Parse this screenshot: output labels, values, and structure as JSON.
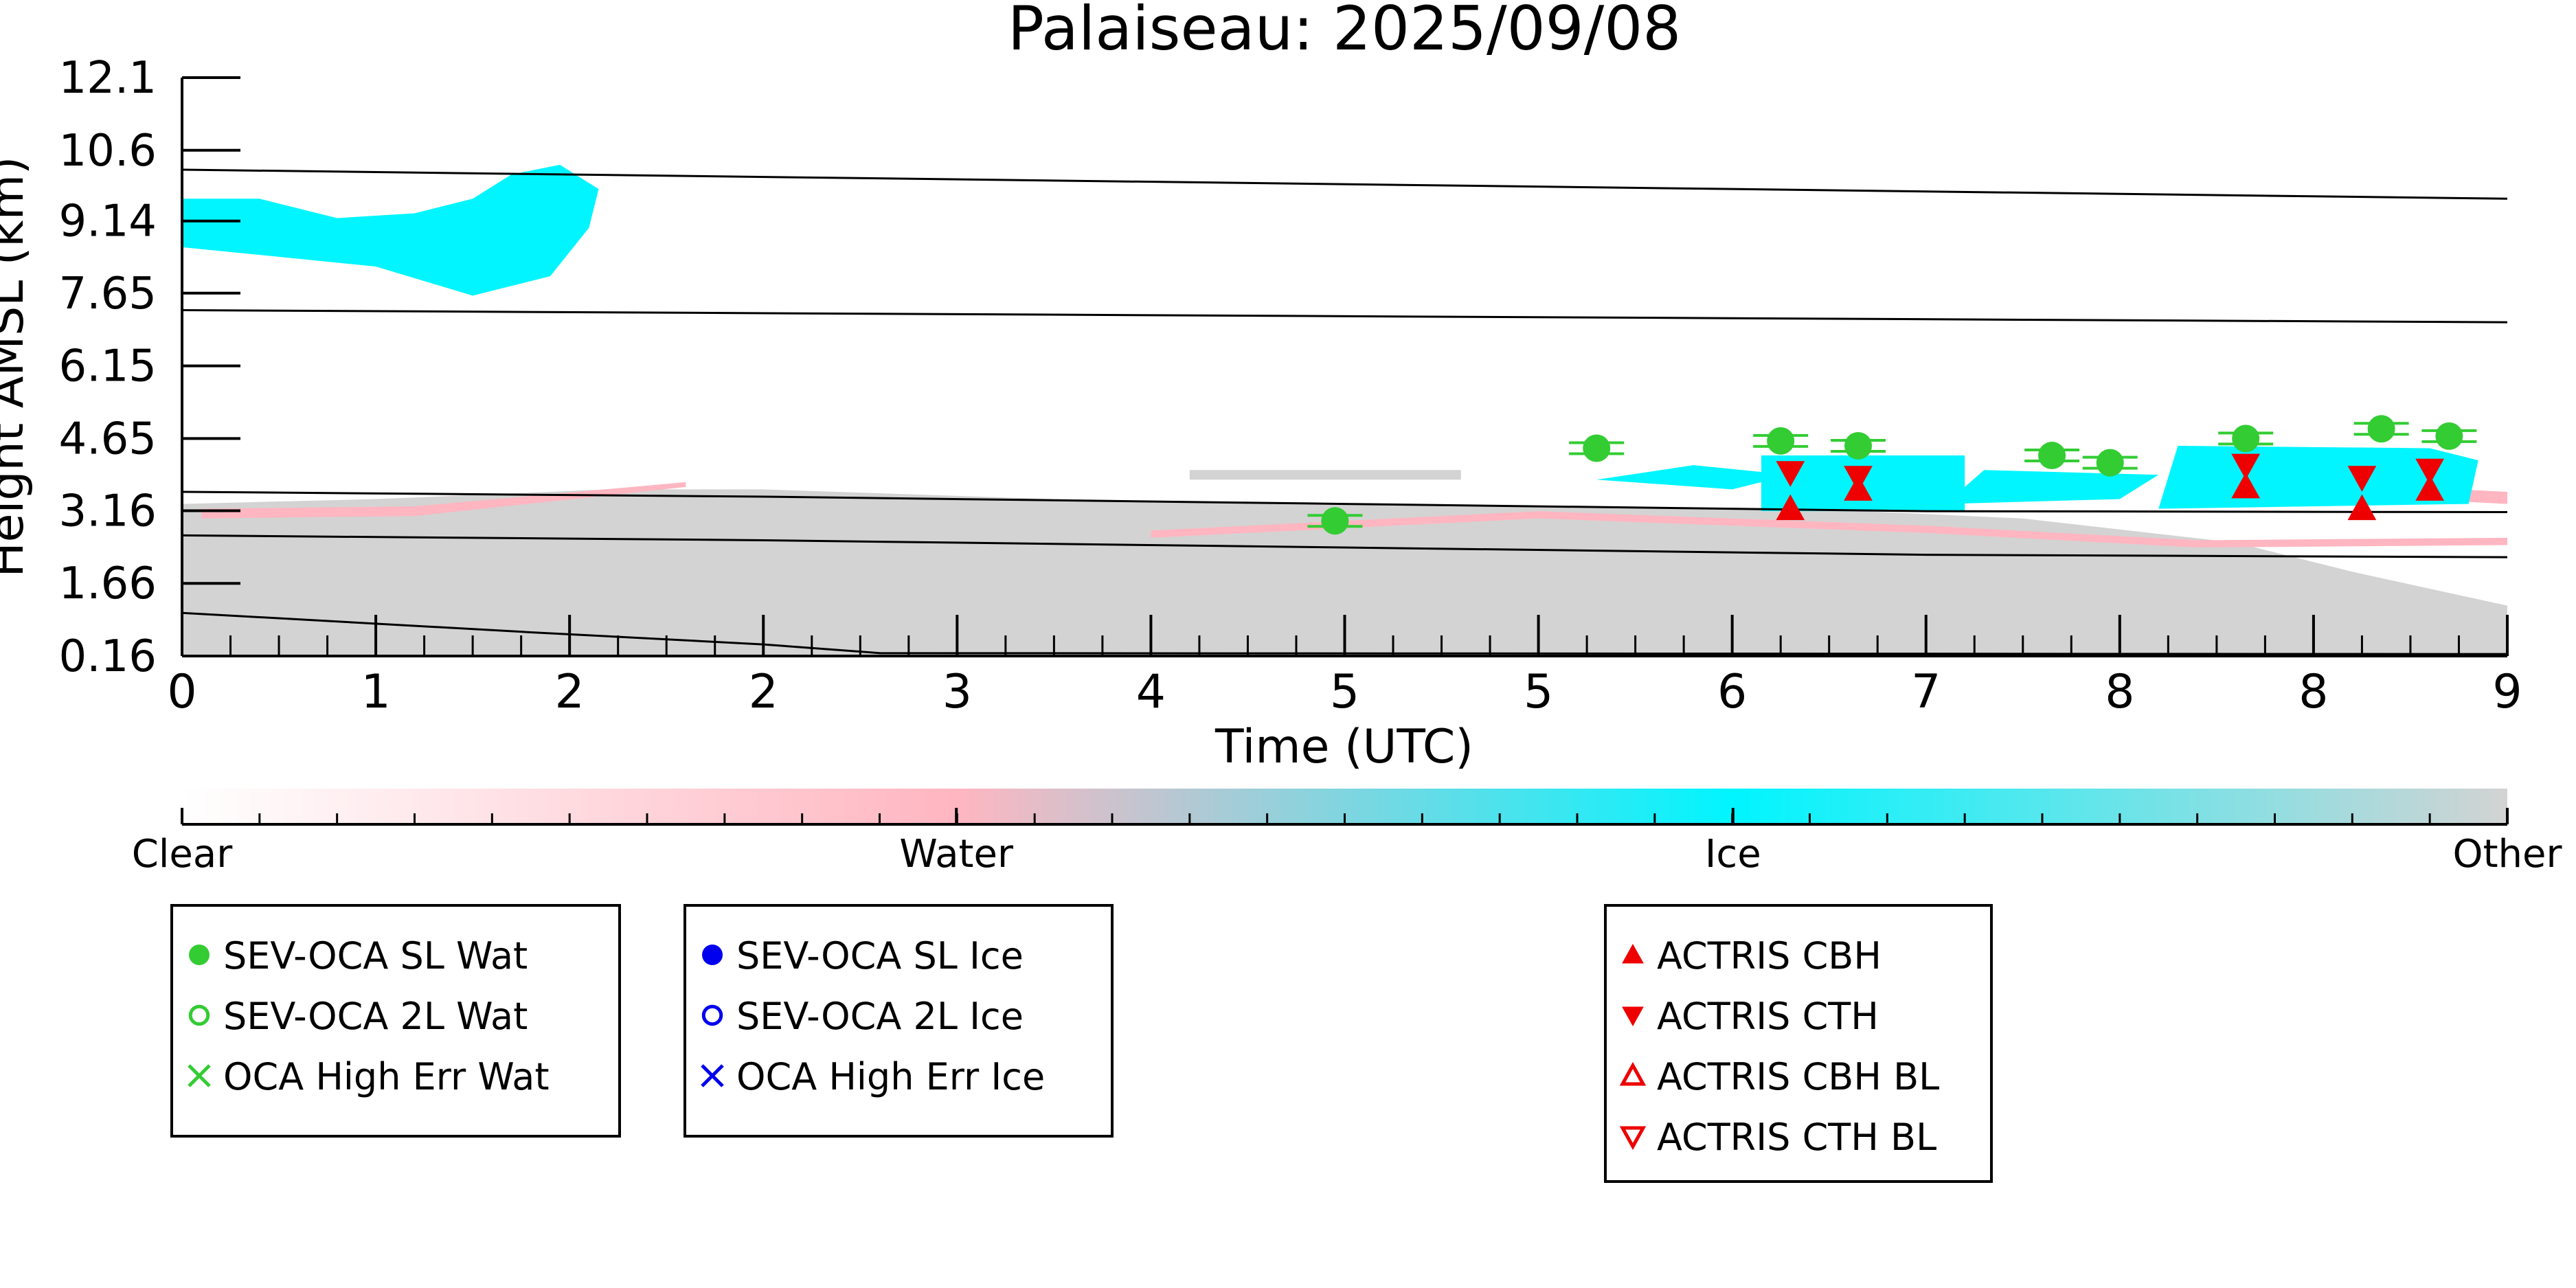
{
  "chart_data": {
    "type": "scatter",
    "title": "Palaiseau: 2025/09/08",
    "xlabel": "Time (UTC)",
    "ylabel": "Height AMSL (km)",
    "xlim": [
      0,
      12
    ],
    "ylim": [
      0.16,
      12.1
    ],
    "x_ticks": [
      {
        "x": 0,
        "label": "0"
      },
      {
        "x": 1,
        "label": "1"
      },
      {
        "x": 2,
        "label": "2"
      },
      {
        "x": 3,
        "label": "2"
      },
      {
        "x": 4,
        "label": "3"
      },
      {
        "x": 5,
        "label": "4"
      },
      {
        "x": 6,
        "label": "5"
      },
      {
        "x": 7,
        "label": "5"
      },
      {
        "x": 8,
        "label": "6"
      },
      {
        "x": 9,
        "label": "7"
      },
      {
        "x": 10,
        "label": "8"
      },
      {
        "x": 11,
        "label": "8"
      },
      {
        "x": 12,
        "label": "9"
      }
    ],
    "y_ticks": [
      {
        "y": 0.16,
        "label": "0.16"
      },
      {
        "y": 1.66,
        "label": "1.66"
      },
      {
        "y": 3.16,
        "label": "3.16"
      },
      {
        "y": 4.65,
        "label": "4.65"
      },
      {
        "y": 6.15,
        "label": "6.15"
      },
      {
        "y": 7.65,
        "label": "7.65"
      },
      {
        "y": 9.14,
        "label": "9.14"
      },
      {
        "y": 10.6,
        "label": "10.6"
      },
      {
        "y": 12.1,
        "label": "12.1"
      }
    ],
    "reference_lines": [
      {
        "points": [
          [
            0,
            10.2
          ],
          [
            12,
            9.6
          ]
        ]
      },
      {
        "points": [
          [
            0,
            7.3
          ],
          [
            12,
            7.05
          ]
        ]
      },
      {
        "points": [
          [
            0,
            3.55
          ],
          [
            3,
            3.45
          ],
          [
            6,
            3.3
          ],
          [
            9,
            3.15
          ],
          [
            12,
            3.13
          ]
        ]
      },
      {
        "points": [
          [
            0,
            2.65
          ],
          [
            3,
            2.55
          ],
          [
            6,
            2.4
          ],
          [
            9,
            2.25
          ],
          [
            12,
            2.2
          ]
        ]
      },
      {
        "points": [
          [
            0,
            1.05
          ],
          [
            1.8,
            0.65
          ],
          [
            3,
            0.4
          ],
          [
            3.6,
            0.22
          ],
          [
            12,
            0.2
          ]
        ]
      }
    ],
    "regions": [
      {
        "category": "Other",
        "points": [
          [
            0,
            0.16
          ],
          [
            12,
            0.16
          ],
          [
            12,
            1.2
          ],
          [
            11.2,
            1.9
          ],
          [
            10.6,
            2.5
          ],
          [
            9.5,
            3.0
          ],
          [
            8.4,
            3.2
          ],
          [
            6,
            3.3
          ],
          [
            4.5,
            3.4
          ],
          [
            3.0,
            3.6
          ],
          [
            2.2,
            3.6
          ],
          [
            1.0,
            3.4
          ],
          [
            0,
            3.3
          ]
        ]
      },
      {
        "category": "Other",
        "points": [
          [
            5.2,
            4.0
          ],
          [
            6.6,
            4.0
          ],
          [
            6.6,
            3.8
          ],
          [
            5.2,
            3.8
          ]
        ]
      },
      {
        "category": "Water",
        "points": [
          [
            5.0,
            2.6
          ],
          [
            7.0,
            3.0
          ],
          [
            9.0,
            2.7
          ],
          [
            10.4,
            2.4
          ],
          [
            12,
            2.45
          ],
          [
            12,
            2.6
          ],
          [
            10.4,
            2.55
          ],
          [
            9.0,
            2.85
          ],
          [
            7.0,
            3.15
          ],
          [
            5.0,
            2.75
          ]
        ]
      },
      {
        "category": "Water",
        "points": [
          [
            0.1,
            3.0
          ],
          [
            1.2,
            3.05
          ],
          [
            2.6,
            3.65
          ],
          [
            2.6,
            3.75
          ],
          [
            1.2,
            3.25
          ],
          [
            0.1,
            3.2
          ]
        ]
      },
      {
        "category": "Water",
        "points": [
          [
            11.5,
            3.4
          ],
          [
            12,
            3.3
          ],
          [
            12,
            3.55
          ],
          [
            11.5,
            3.65
          ]
        ]
      },
      {
        "category": "Ice",
        "points": [
          [
            0,
            8.6
          ],
          [
            0.5,
            8.4
          ],
          [
            1.0,
            8.2
          ],
          [
            1.5,
            7.6
          ],
          [
            1.9,
            8.0
          ],
          [
            2.1,
            9.0
          ],
          [
            2.15,
            9.8
          ],
          [
            1.95,
            10.3
          ],
          [
            1.7,
            10.1
          ],
          [
            1.5,
            9.6
          ],
          [
            1.2,
            9.3
          ],
          [
            0.8,
            9.2
          ],
          [
            0.4,
            9.6
          ],
          [
            0,
            9.6
          ]
        ]
      },
      {
        "category": "Ice",
        "points": [
          [
            7.3,
            3.8
          ],
          [
            8.0,
            3.6
          ],
          [
            8.3,
            3.9
          ],
          [
            7.8,
            4.1
          ]
        ]
      },
      {
        "category": "Ice",
        "points": [
          [
            8.15,
            3.15
          ],
          [
            9.2,
            3.15
          ],
          [
            9.2,
            4.3
          ],
          [
            8.15,
            4.3
          ]
        ]
      },
      {
        "category": "Ice",
        "points": [
          [
            9.1,
            3.3
          ],
          [
            10.0,
            3.4
          ],
          [
            10.2,
            3.9
          ],
          [
            9.3,
            4.0
          ]
        ]
      },
      {
        "category": "Ice",
        "points": [
          [
            10.2,
            3.2
          ],
          [
            11.8,
            3.3
          ],
          [
            11.85,
            4.2
          ],
          [
            11.6,
            4.45
          ],
          [
            10.3,
            4.5
          ]
        ]
      }
    ],
    "colorbar": {
      "labels": [
        {
          "pos": 0,
          "label": "Clear"
        },
        {
          "pos": 0.333,
          "label": "Water"
        },
        {
          "pos": 0.667,
          "label": "Ice"
        },
        {
          "pos": 1,
          "label": "Other"
        }
      ],
      "stops": [
        {
          "pos": 0,
          "color": "#ffffff"
        },
        {
          "pos": 0.333,
          "color": "#ffb6c1"
        },
        {
          "pos": 0.667,
          "color": "#00f5ff"
        },
        {
          "pos": 1,
          "color": "#d3d3d3"
        }
      ],
      "minor_ticks": 30
    },
    "series": [
      {
        "name": "SEV-OCA SL Wat",
        "marker": "filled-circle",
        "color": "#33cc33",
        "points": [
          [
            5.95,
            2.95
          ],
          [
            7.3,
            4.45
          ],
          [
            8.25,
            4.6
          ],
          [
            8.65,
            4.5
          ],
          [
            9.65,
            4.3
          ],
          [
            9.95,
            4.15
          ],
          [
            10.65,
            4.65
          ],
          [
            11.35,
            4.85
          ],
          [
            11.7,
            4.7
          ]
        ]
      },
      {
        "name": "SEV-OCA 2L Wat",
        "marker": "open-circle",
        "color": "#33cc33",
        "points": []
      },
      {
        "name": "OCA High Err Wat",
        "marker": "x",
        "color": "#33cc33",
        "points": []
      },
      {
        "name": "SEV-OCA SL Ice",
        "marker": "filled-circle",
        "color": "#0000ee",
        "points": []
      },
      {
        "name": "SEV-OCA 2L Ice",
        "marker": "open-circle",
        "color": "#0000ee",
        "points": []
      },
      {
        "name": "OCA High Err Ice",
        "marker": "x",
        "color": "#0000ee",
        "points": []
      },
      {
        "name": "ACTRIS CBH",
        "marker": "triangle-up",
        "color": "#ee0000",
        "points": [
          [
            8.3,
            3.2
          ],
          [
            8.65,
            3.6
          ],
          [
            10.65,
            3.65
          ],
          [
            11.25,
            3.2
          ],
          [
            11.6,
            3.6
          ]
        ]
      },
      {
        "name": "ACTRIS CTH",
        "marker": "triangle-down",
        "color": "#ee0000",
        "points": [
          [
            8.3,
            3.95
          ],
          [
            8.65,
            3.85
          ],
          [
            10.65,
            4.1
          ],
          [
            11.25,
            3.85
          ],
          [
            11.6,
            4.0
          ]
        ]
      },
      {
        "name": "ACTRIS CBH BL",
        "marker": "open-triangle-up",
        "color": "#ee0000",
        "points": []
      },
      {
        "name": "ACTRIS CTH BL",
        "marker": "open-triangle-down",
        "color": "#ee0000",
        "points": []
      }
    ]
  },
  "legends": [
    {
      "items": [
        "SEV-OCA SL Wat",
        "SEV-OCA 2L Wat",
        "OCA High Err Wat"
      ]
    },
    {
      "items": [
        "SEV-OCA SL Ice",
        "SEV-OCA 2L Ice",
        "OCA High Err Ice"
      ]
    },
    {
      "items": [
        "ACTRIS CBH",
        "ACTRIS CTH",
        "ACTRIS CBH BL",
        "ACTRIS CTH BL"
      ]
    }
  ]
}
